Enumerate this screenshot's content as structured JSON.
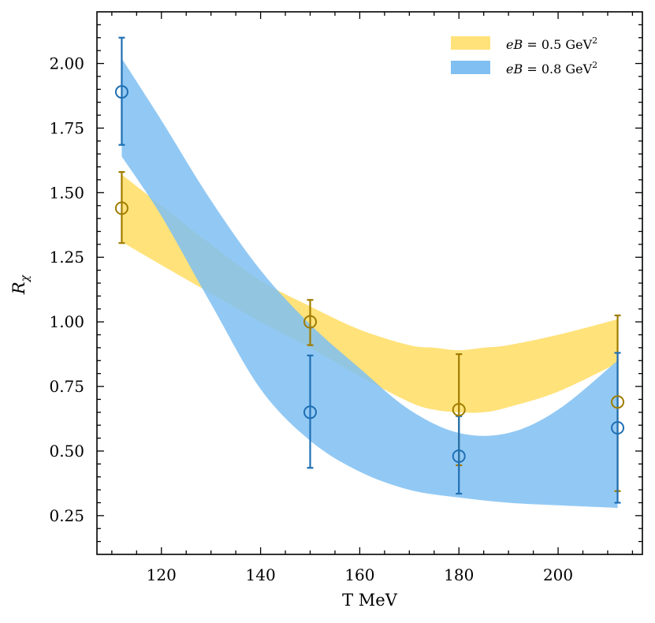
{
  "chart_data": {
    "type": "area",
    "xlabel": "T MeV",
    "ylabel_symbol": "R",
    "ylabel_subscript": "χ",
    "xlim": [
      107,
      217
    ],
    "ylim": [
      0.1,
      2.2
    ],
    "x_ticks": [
      120,
      140,
      160,
      180,
      200
    ],
    "x_tick_labels": [
      "120",
      "140",
      "160",
      "180",
      "200"
    ],
    "y_ticks": [
      0.25,
      0.5,
      0.75,
      1.0,
      1.25,
      1.5,
      1.75,
      2.0
    ],
    "y_tick_labels": [
      "0.25",
      "0.50",
      "0.75",
      "1.00",
      "1.25",
      "1.50",
      "1.75",
      "2.00"
    ],
    "series": [
      {
        "name": "eB = 0.5 GeV²",
        "legend_prefix": "eB",
        "legend_middle": " = 0.5 GeV",
        "legend_sup": "2",
        "band_color": "#ffe27a",
        "marker_color": "#a07c00",
        "band": {
          "x": [
            112,
            120,
            130,
            140,
            150,
            160,
            170,
            175,
            180,
            185,
            190,
            200,
            212
          ],
          "lower": [
            1.31,
            1.22,
            1.11,
            1.0,
            0.9,
            0.79,
            0.69,
            0.66,
            0.65,
            0.65,
            0.67,
            0.73,
            0.84
          ],
          "upper": [
            1.57,
            1.45,
            1.3,
            1.16,
            1.06,
            0.97,
            0.91,
            0.9,
            0.89,
            0.9,
            0.91,
            0.95,
            1.01
          ]
        },
        "points": {
          "x": [
            112,
            150,
            180,
            212
          ],
          "y": [
            1.44,
            1.0,
            0.66,
            0.69
          ],
          "err_low": [
            1.305,
            0.91,
            0.445,
            0.345
          ],
          "err_high": [
            1.58,
            1.085,
            0.875,
            1.025
          ]
        }
      },
      {
        "name": "eB = 0.8 GeV²",
        "legend_prefix": "eB",
        "legend_middle": " = 0.8 GeV",
        "legend_sup": "2",
        "band_color": "#7fbff2",
        "marker_color": "#1f6fb4",
        "band": {
          "x": [
            112,
            120,
            130,
            140,
            150,
            160,
            170,
            180,
            190,
            200,
            212
          ],
          "lower": [
            1.64,
            1.41,
            1.07,
            0.74,
            0.54,
            0.42,
            0.35,
            0.32,
            0.3,
            0.29,
            0.28
          ],
          "upper": [
            2.02,
            1.78,
            1.47,
            1.2,
            0.99,
            0.82,
            0.66,
            0.57,
            0.57,
            0.66,
            0.85
          ]
        },
        "points": {
          "x": [
            112,
            150,
            180,
            212
          ],
          "y": [
            1.89,
            0.65,
            0.48,
            0.59
          ],
          "err_low": [
            1.685,
            0.435,
            0.335,
            0.3
          ],
          "err_high": [
            2.1,
            0.87,
            0.635,
            0.88
          ]
        }
      }
    ]
  }
}
